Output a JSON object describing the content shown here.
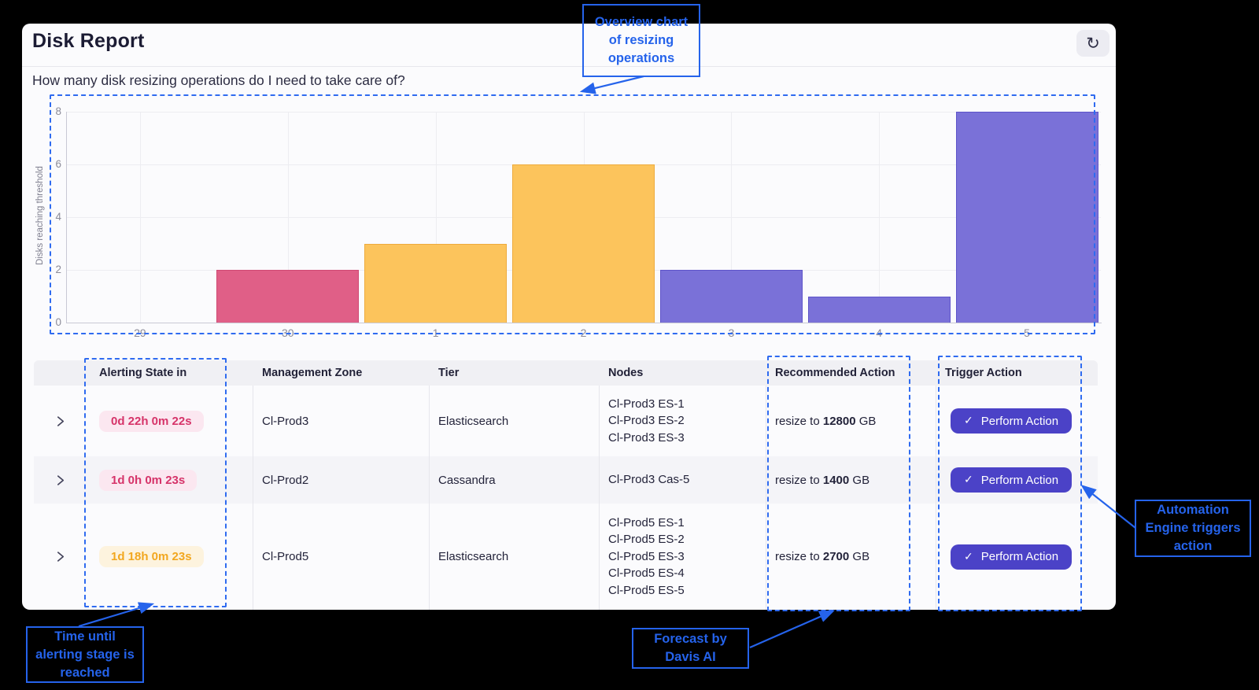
{
  "header": {
    "title": "Disk Report"
  },
  "question": "How many disk resizing operations do I need to take care of?",
  "chart_data": {
    "type": "bar",
    "categories": [
      "29",
      "30",
      "1",
      "2",
      "3",
      "4",
      "5"
    ],
    "values": [
      0,
      2,
      3,
      6,
      2,
      1,
      8
    ],
    "bar_colors": [
      null,
      "#e05f87",
      "#fcc45c",
      "#fcc45c",
      "#7a71d8",
      "#7a71d8",
      "#7a71d8"
    ],
    "bar_border_colors": [
      null,
      "#cf4a74",
      "#eeab3d",
      "#eeab3d",
      "#5e54c9",
      "#5e54c9",
      "#5e54c9"
    ],
    "title": "",
    "xlabel": "",
    "ylabel": "Disks reaching threshold",
    "yticks": [
      0,
      2,
      4,
      6,
      8
    ],
    "ylim": [
      0,
      8
    ],
    "grid": true,
    "legend": null
  },
  "table": {
    "columns": [
      "Alerting State in",
      "Management Zone",
      "Tier",
      "Nodes",
      "Recommended Action",
      "Trigger Action"
    ],
    "rows": [
      {
        "alerting_state": "0d 22h 0m 22s",
        "severity": "critical",
        "management_zone": "Cl-Prod3",
        "tier": "Elasticsearch",
        "nodes": [
          "Cl-Prod3 ES-1",
          "Cl-Prod3 ES-2",
          "Cl-Prod3 ES-3"
        ],
        "action_prefix": "resize to",
        "action_value": "12800",
        "action_suffix": "GB",
        "trigger_label": "Perform Action"
      },
      {
        "alerting_state": "1d 0h 0m 23s",
        "severity": "critical",
        "management_zone": "Cl-Prod2",
        "tier": "Cassandra",
        "nodes": [
          "Cl-Prod3 Cas-5"
        ],
        "action_prefix": "resize to",
        "action_value": "1400",
        "action_suffix": "GB",
        "trigger_label": "Perform Action"
      },
      {
        "alerting_state": "1d 18h 0m 23s",
        "severity": "warning",
        "management_zone": "Cl-Prod5",
        "tier": "Elasticsearch",
        "nodes": [
          "Cl-Prod5 ES-1",
          "Cl-Prod5 ES-2",
          "Cl-Prod5 ES-3",
          "Cl-Prod5 ES-4",
          "Cl-Prod5 ES-5"
        ],
        "action_prefix": "resize to",
        "action_value": "2700",
        "action_suffix": "GB",
        "trigger_label": "Perform Action"
      }
    ]
  },
  "annotations": [
    {
      "id": "overview",
      "lines": [
        "Overview chart",
        "of resizing",
        "operations"
      ]
    },
    {
      "id": "time",
      "lines": [
        "Time until",
        "alerting stage is",
        "reached"
      ]
    },
    {
      "id": "forecast",
      "lines": [
        "Forecast by",
        "Davis AI"
      ]
    },
    {
      "id": "automation",
      "lines": [
        "Automation",
        "Engine triggers",
        "action"
      ]
    }
  ],
  "icons": {
    "refresh": "↻",
    "check": "✓"
  },
  "colors": {
    "annotation_blue": "#2563eb",
    "badge_critical_text": "#d63369",
    "badge_critical_bg": "#fbe7f0",
    "badge_warning_text": "#f2a71f",
    "badge_warning_bg": "#fdf3de",
    "button_bg": "#4b42c7",
    "bar_pink": "#e05f87",
    "bar_yellow": "#fcc45c",
    "bar_purple": "#7a71d8"
  }
}
